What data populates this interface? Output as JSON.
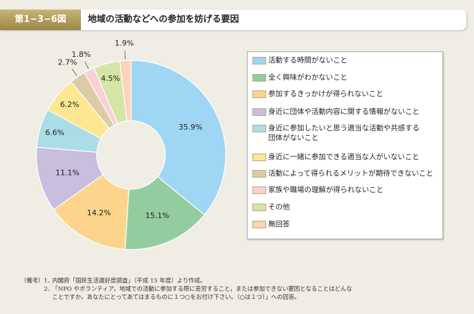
{
  "header": {
    "figure_no": "第1−3−6図",
    "title": "地域の活動などへの参加を妨げる要因"
  },
  "chart_data": {
    "type": "pie",
    "donut": true,
    "title": "地域の活動などへの参加を妨げる要因",
    "unit": "%",
    "categories": [
      "活動する時間がないこと",
      "全く興味がわかないこと",
      "参加するきっかけが得られないこと",
      "身近に団体や活動内容に関する情報がないこと",
      "身近に参加したいと思う適当な活動や共感する団体がないこと",
      "身近に一緒に参加できる適当な人がいないこと",
      "活動によって得られるメリットが期待できないこと",
      "家族や職場の理解が得られないこと",
      "その他",
      "無回答"
    ],
    "values": [
      35.9,
      15.1,
      14.2,
      11.1,
      6.6,
      6.2,
      2.7,
      1.8,
      4.5,
      1.9
    ],
    "labels": [
      "35.9%",
      "15.1%",
      "14.2%",
      "11.1%",
      "6.6%",
      "6.2%",
      "2.7%",
      "1.8%",
      "4.5%",
      "1.9%"
    ],
    "colors": [
      "#9fd6f3",
      "#93cd9f",
      "#fcd48c",
      "#c9bede",
      "#abdde6",
      "#fbe891",
      "#dccba6",
      "#f8d0d5",
      "#d5e5a5",
      "#fbd4b9"
    ],
    "legend_lines": [
      [
        "活動する時間がないこと"
      ],
      [
        "全く興味がわかないこと"
      ],
      [
        "参加するきっかけが得られないこと"
      ],
      [
        "身近に団体や活動内容に関する情報がないこと"
      ],
      [
        "身近に参加したいと思う適当な活動や共感する",
        "団体がないこと"
      ],
      [
        "身近に一緒に参加できる適当な人がいないこと"
      ],
      [
        "活動によって得られるメリットが期待できないこと"
      ],
      [
        "家族や職場の理解が得られないこと"
      ],
      [
        "その他"
      ],
      [
        "無回答"
      ]
    ],
    "legend_placement": "right",
    "start": "top",
    "direction": "clockwise"
  },
  "notes": {
    "label": "（備考）",
    "items": [
      {
        "n": "1．",
        "lines": [
          "内閣府「国民生活選好度調査」（平成 15 年度）より作成。"
        ]
      },
      {
        "n": "2．",
        "lines": [
          "「NPO やボランティア，地域での活動に参加する際に苦労すること，または参加できない要因となることはどんな",
          "ことですか。あなたにとってあてはまるものに１つ○をお付け下さい。（○は１つ）」への回答。"
        ]
      }
    ]
  }
}
